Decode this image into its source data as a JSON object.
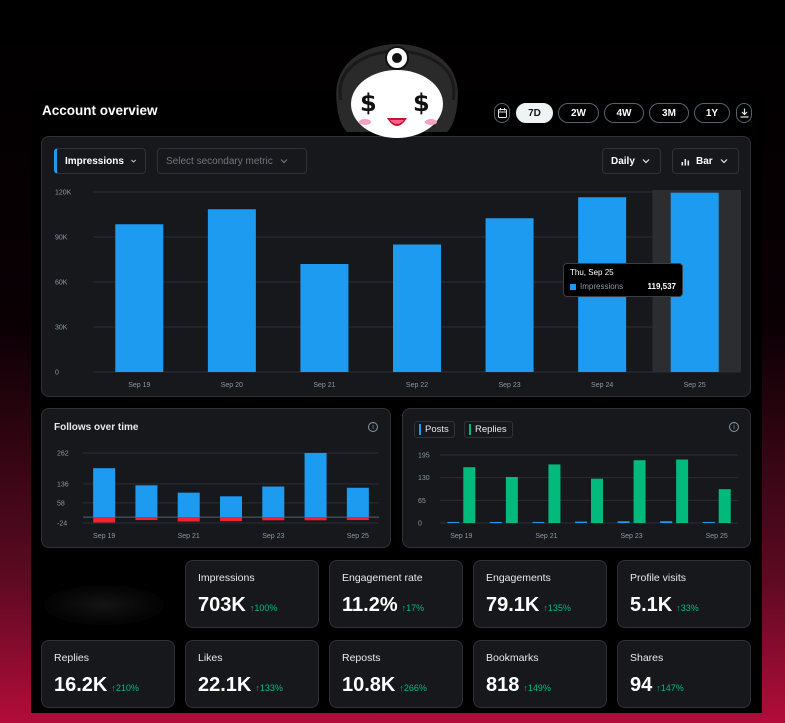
{
  "header": {
    "title": "Account overview",
    "ranges": [
      "7D",
      "2W",
      "4W",
      "3M",
      "1Y"
    ],
    "active_range": "7D",
    "calendar_icon": "calendar-icon",
    "download_icon": "download-icon"
  },
  "controls": {
    "primary_metric": "Impressions",
    "secondary_placeholder": "Select secondary metric",
    "interval": "Daily",
    "chart_type": "Bar"
  },
  "tooltip": {
    "date": "Thu, Sep 25",
    "label": "Impressions",
    "value": "119,537"
  },
  "follows": {
    "title": "Follows over time"
  },
  "posts_replies": {
    "posts_label": "Posts",
    "replies_label": "Replies"
  },
  "metrics": [
    {
      "label": "Impressions",
      "value": "703K",
      "change": "↑100%"
    },
    {
      "label": "Engagement rate",
      "value": "11.2%",
      "change": "↑17%"
    },
    {
      "label": "Engagements",
      "value": "79.1K",
      "change": "↑135%"
    },
    {
      "label": "Profile visits",
      "value": "5.1K",
      "change": "↑33%"
    },
    {
      "label": "Replies",
      "value": "16.2K",
      "change": "↑210%"
    },
    {
      "label": "Likes",
      "value": "22.1K",
      "change": "↑133%"
    },
    {
      "label": "Reposts",
      "value": "10.8K",
      "change": "↑266%"
    },
    {
      "label": "Bookmarks",
      "value": "818",
      "change": "↑149%"
    },
    {
      "label": "Shares",
      "value": "94",
      "change": "↑147%"
    }
  ],
  "colors": {
    "blue": "#1d9bf0",
    "green": "#00ba7c",
    "red": "#f4212e"
  },
  "chart_data": [
    {
      "type": "bar",
      "categories": [
        "Sep 19",
        "Sep 20",
        "Sep 21",
        "Sep 22",
        "Sep 23",
        "Sep 24",
        "Sep 25"
      ],
      "series": [
        {
          "name": "Impressions",
          "values": [
            98500,
            108500,
            72000,
            85000,
            102500,
            116500,
            119537
          ]
        }
      ],
      "yticks": [
        "0",
        "30K",
        "60K",
        "90K",
        "120K"
      ],
      "ylim": [
        0,
        120000
      ],
      "highlight": "Sep 25"
    },
    {
      "type": "bar",
      "categories": [
        "Sep 19",
        "Sep 20",
        "Sep 21",
        "Sep 22",
        "Sep 23",
        "Sep 24",
        "Sep 25"
      ],
      "xticks": [
        "Sep 19",
        "Sep 21",
        "Sep 23",
        "Sep 25"
      ],
      "series": [
        {
          "values": [
            200,
            130,
            100,
            85,
            125,
            262,
            120
          ]
        },
        {
          "values": [
            -22,
            -12,
            -18,
            -16,
            -13,
            -13,
            -12
          ]
        }
      ],
      "yticks": [
        "-24",
        "58",
        "136",
        "262"
      ],
      "ylim": [
        -24,
        262
      ]
    },
    {
      "type": "bar",
      "categories": [
        "Sep 19",
        "Sep 20",
        "Sep 21",
        "Sep 22",
        "Sep 23",
        "Sep 24",
        "Sep 25"
      ],
      "xticks": [
        "Sep 19",
        "Sep 21",
        "Sep 23",
        "Sep 25"
      ],
      "series": [
        {
          "name": "Posts",
          "values": [
            3,
            3,
            3,
            4,
            5,
            5,
            3
          ]
        },
        {
          "name": "Replies",
          "values": [
            160,
            132,
            168,
            127,
            180,
            182,
            97
          ]
        }
      ],
      "yticks": [
        "0",
        "65",
        "130",
        "195"
      ],
      "ylim": [
        0,
        195
      ]
    }
  ]
}
